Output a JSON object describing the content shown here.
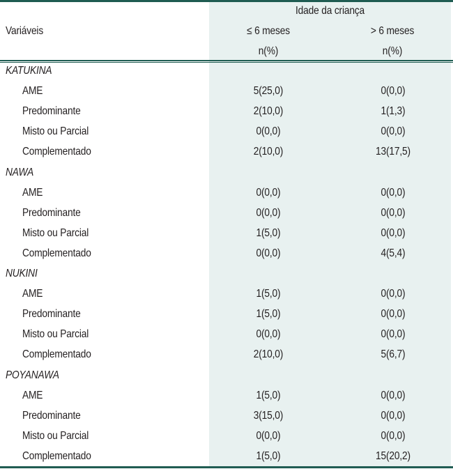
{
  "table": {
    "header": {
      "group_label": "Idade da criança",
      "variable_label": "Variáveis",
      "columns": [
        {
          "label": "≤ 6 meses",
          "unit": "n(%)"
        },
        {
          "label": "> 6 meses",
          "unit": "n(%)"
        }
      ]
    },
    "groups": [
      {
        "name": "KATUKINA",
        "rows": [
          {
            "label": "AME",
            "le6": "5(25,0)",
            "gt6": "0(0,0)"
          },
          {
            "label": "Predominante",
            "le6": "2(10,0)",
            "gt6": "1(1,3)"
          },
          {
            "label": "Misto ou Parcial",
            "le6": "0(0,0)",
            "gt6": "0(0,0)"
          },
          {
            "label": "Complementado",
            "le6": "2(10,0)",
            "gt6": "13(17,5)"
          }
        ]
      },
      {
        "name": "NAWA",
        "rows": [
          {
            "label": "AME",
            "le6": "0(0,0)",
            "gt6": "0(0,0)"
          },
          {
            "label": "Predominante",
            "le6": "0(0,0)",
            "gt6": "0(0,0)"
          },
          {
            "label": "Misto ou Parcial",
            "le6": "1(5,0)",
            "gt6": "0(0,0)"
          },
          {
            "label": "Complementado",
            "le6": "0(0,0)",
            "gt6": "4(5,4)"
          }
        ]
      },
      {
        "name": "NUKINI",
        "rows": [
          {
            "label": "AME",
            "le6": "1(5,0)",
            "gt6": "0(0,0)"
          },
          {
            "label": "Predominante",
            "le6": "1(5,0)",
            "gt6": "0(0,0)"
          },
          {
            "label": "Misto ou Parcial",
            "le6": "0(0,0)",
            "gt6": "0(0,0)"
          },
          {
            "label": "Complementado",
            "le6": "2(10,0)",
            "gt6": "5(6,7)"
          }
        ]
      },
      {
        "name": "POYANAWA",
        "rows": [
          {
            "label": "AME",
            "le6": "1(5,0)",
            "gt6": "0(0,0)"
          },
          {
            "label": "Predominante",
            "le6": "3(15,0)",
            "gt6": "0(0,0)"
          },
          {
            "label": "Misto ou Parcial",
            "le6": "0(0,0)",
            "gt6": "0(0,0)"
          },
          {
            "label": "Complementado",
            "le6": "1(5,0)",
            "gt6": "15(20,2)"
          }
        ]
      }
    ]
  },
  "colors": {
    "rule": "#1f5c52",
    "shade": "#e8f1f0",
    "text": "#231f20"
  }
}
